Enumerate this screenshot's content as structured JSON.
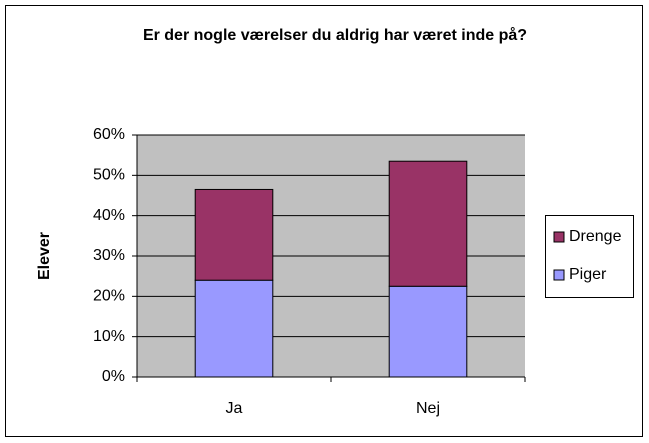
{
  "chart_data": {
    "type": "stacked_bar",
    "title": "Er der nogle værelser du aldrig har været inde på?",
    "y_label": "Elever",
    "categories": [
      "Ja",
      "Nej"
    ],
    "series": [
      {
        "name": "Piger",
        "color": "#9999ff",
        "values": [
          24,
          22.5
        ]
      },
      {
        "name": "Drenge",
        "color": "#993366",
        "values": [
          22.5,
          31
        ]
      }
    ],
    "ylim": [
      0,
      60
    ],
    "yticks": [
      {
        "value": 0,
        "label": "0%"
      },
      {
        "value": 10,
        "label": "10%"
      },
      {
        "value": 20,
        "label": "20%"
      },
      {
        "value": 30,
        "label": "30%"
      },
      {
        "value": 40,
        "label": "40%"
      },
      {
        "value": 50,
        "label": "50%"
      },
      {
        "value": 60,
        "label": "60%"
      }
    ],
    "grid": true,
    "legend": "right"
  }
}
